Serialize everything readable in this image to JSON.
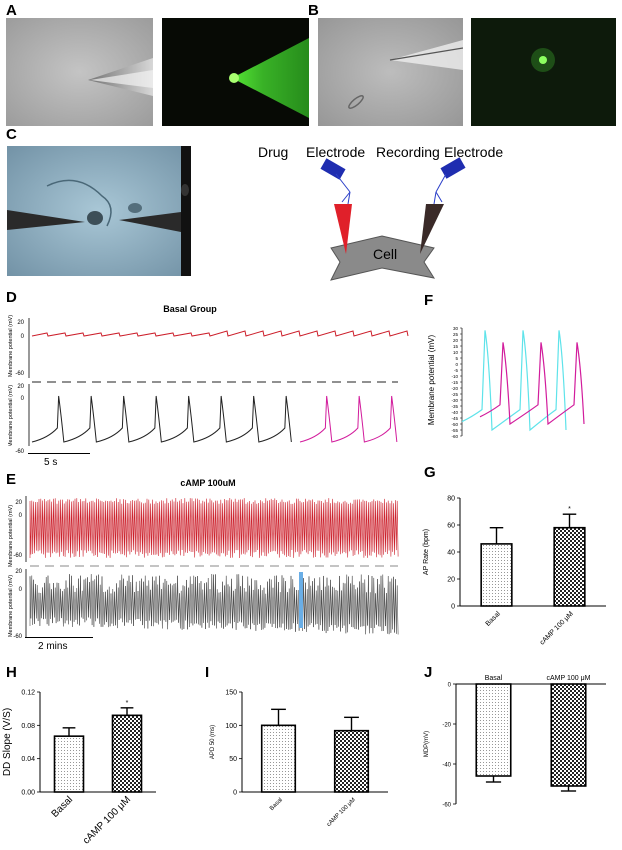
{
  "panels": {
    "A": "A",
    "B": "B",
    "C": "C",
    "D": "D",
    "E": "E",
    "F": "F",
    "G": "G",
    "H": "H",
    "I": "I",
    "J": "J"
  },
  "diagram": {
    "drug_label": "Drug",
    "drug_electrode_label": "Electrode",
    "recording_label": "Recording",
    "recording_electrode_label": "Electrode",
    "cell_label": "Cell"
  },
  "traces": {
    "basal_title": "Basal Group",
    "camp_title": "cAMP 100uM",
    "ylabel": "Membrane potential (mV)",
    "ticks_top": [
      "20",
      "0",
      "-60"
    ],
    "ticks_bottom": [
      "20",
      "0",
      "-60"
    ],
    "scale_5s": "5 s",
    "scale_2min": "2 mins",
    "colors": {
      "red": "#cc1f2b",
      "black": "#222222",
      "magenta": "#d21c9c",
      "cyan": "#5ee3ea",
      "blue": "#6aaee6"
    }
  },
  "panel_f": {
    "ylabel": "Membrane potential (mV)",
    "yticks": [
      "30",
      "25",
      "20",
      "15",
      "10",
      "5",
      "0",
      "-5",
      "-10",
      "-15",
      "-20",
      "-25",
      "-30",
      "-35",
      "-40",
      "-45",
      "-50",
      "-55",
      "-60"
    ]
  },
  "chart_data": [
    {
      "panel": "G",
      "type": "bar",
      "categories": [
        "Basal",
        "cAMP 100 μM"
      ],
      "values": [
        46,
        58
      ],
      "errors": [
        12,
        10
      ],
      "ylabel": "AP Rate (bpm)",
      "ylim": [
        0,
        80
      ],
      "yticks": [
        "0",
        "20",
        "40",
        "60",
        "80"
      ],
      "significance": [
        "",
        "*"
      ]
    },
    {
      "panel": "H",
      "type": "bar",
      "categories": [
        "Basal",
        "cAMP 100 μM"
      ],
      "values": [
        0.067,
        0.092
      ],
      "errors": [
        0.01,
        0.009
      ],
      "ylabel": "DD Slope (V/S)",
      "ylim": [
        0,
        0.12
      ],
      "yticks": [
        "0.00",
        "0.04",
        "0.08",
        "0.12"
      ],
      "significance": [
        "",
        "*"
      ]
    },
    {
      "panel": "I",
      "type": "bar",
      "categories": [
        "Basal",
        "cAMP 100 μM"
      ],
      "values": [
        100,
        92
      ],
      "errors": [
        24,
        20
      ],
      "ylabel": "APD 50 (ms)",
      "ylim": [
        0,
        150
      ],
      "yticks": [
        "0",
        "50",
        "100",
        "150"
      ],
      "significance": [
        "",
        ""
      ]
    },
    {
      "panel": "J",
      "type": "bar",
      "categories": [
        "Basal",
        "cAMP 100 μM"
      ],
      "values": [
        -46,
        -51
      ],
      "errors": [
        3,
        2.5
      ],
      "ylabel": "MDP(mV)",
      "ylim": [
        -60,
        0
      ],
      "yticks": [
        "0",
        "-20",
        "-40",
        "-60"
      ],
      "significance": [
        "",
        ""
      ]
    }
  ]
}
